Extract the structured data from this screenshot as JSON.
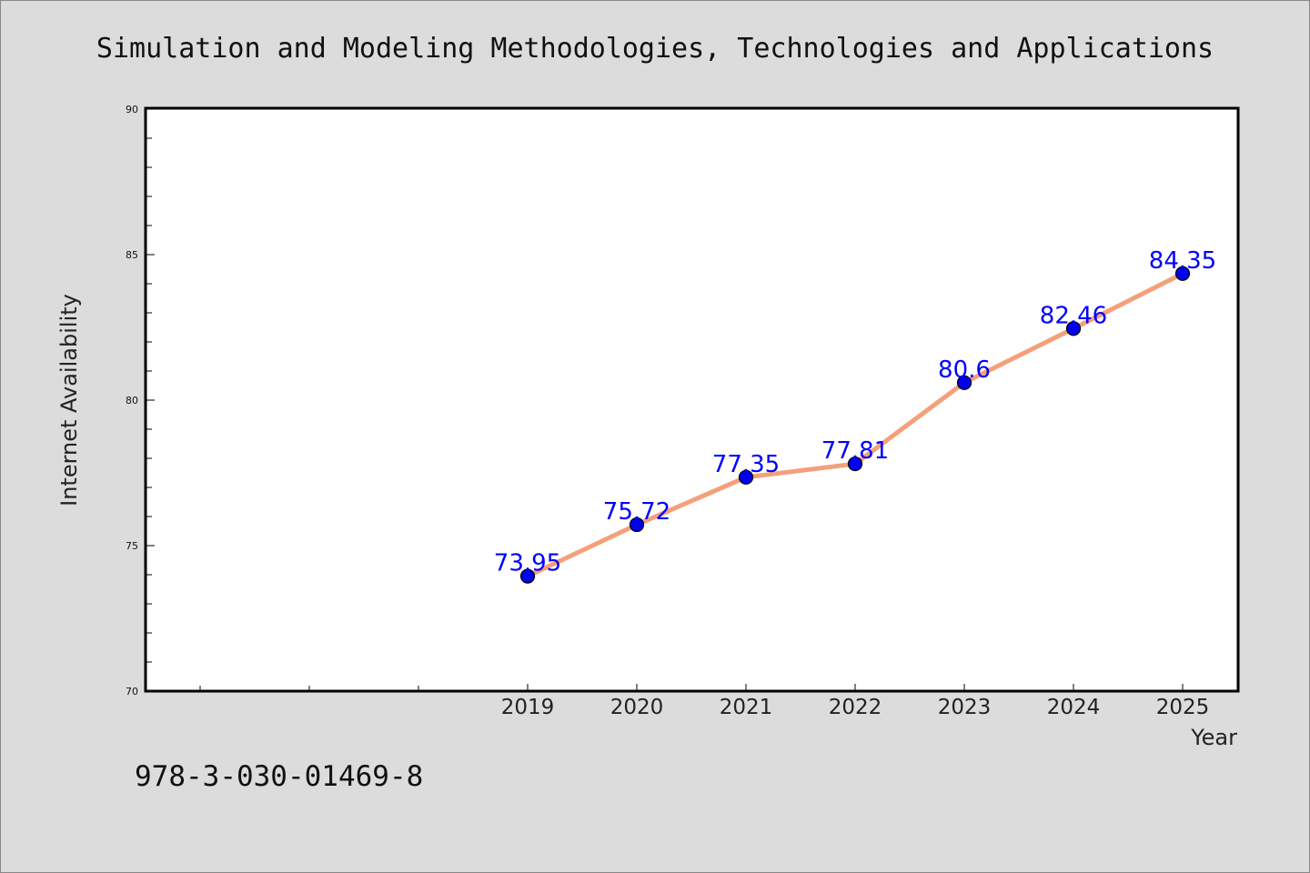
{
  "chart_data": {
    "type": "line",
    "title": "Simulation and Modeling Methodologies, Technologies and Applications",
    "xlabel": "Year",
    "ylabel": "Internet Availability",
    "categories": [
      "2019",
      "2020",
      "2021",
      "2022",
      "2023",
      "2024",
      "2025"
    ],
    "values": [
      73.95,
      75.72,
      77.35,
      77.81,
      80.6,
      82.46,
      84.35
    ],
    "data_labels": [
      "73.95",
      "75.72",
      "77.35",
      "77.81",
      "80.6",
      "82.46",
      "84.35"
    ],
    "ylim": [
      70,
      90
    ],
    "yticks": [
      "70",
      "75",
      "80",
      "85",
      "90"
    ],
    "grid": false,
    "legend": "none",
    "line_color": "#f4a07a",
    "marker_color": "#0000ee",
    "label_color": "#0000ff"
  },
  "footer_text": "978-3-030-01469-8"
}
